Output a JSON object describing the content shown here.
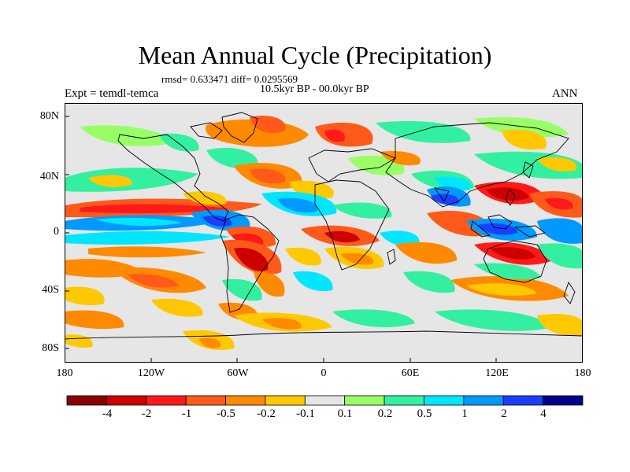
{
  "title": "Mean Annual Cycle (Precipitation)",
  "stats_line": "rmsd= 0.633471 diff= 0.0295569",
  "period_line": "10.5kyr BP - 00.0kyr BP",
  "experiment_label": "Expt = temdl-temca",
  "season_label": "ANN",
  "lat_labels": [
    "80N",
    "40N",
    "0",
    "40S",
    "80S"
  ],
  "lon_labels": [
    "180",
    "120W",
    "60W",
    "0",
    "60E",
    "120E",
    "180"
  ],
  "colorbar": {
    "labels": [
      "-4",
      "-2",
      "-1",
      "-0.5",
      "-0.2",
      "-0.1",
      "0.1",
      "0.2",
      "0.5",
      "1",
      "2",
      "4"
    ],
    "colors": [
      "#8b0000",
      "#cc0000",
      "#ff1a1a",
      "#ff5a1a",
      "#ff8a00",
      "#ffc800",
      "#e6e6e6",
      "#99ff66",
      "#33f0a0",
      "#00e6ff",
      "#0099ff",
      "#1a40ff",
      "#00008b"
    ]
  }
}
